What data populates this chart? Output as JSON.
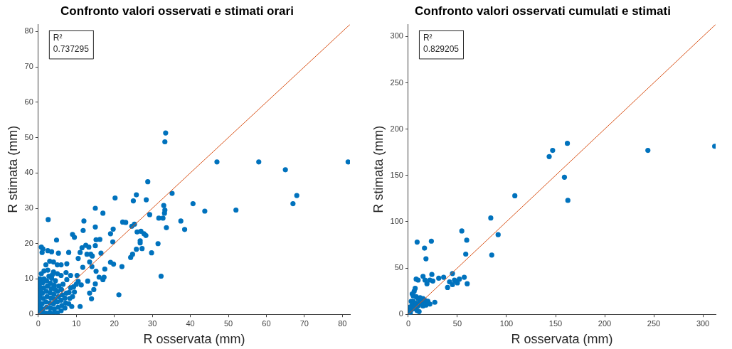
{
  "chart_data": [
    {
      "type": "scatter",
      "title": "Confronto valori osservati e stimati orari",
      "xlabel": "R osservata (mm)",
      "ylabel": "R stimata (mm)",
      "xlim": [
        0,
        82
      ],
      "ylim": [
        0,
        82
      ],
      "xticks": [
        0,
        10,
        20,
        30,
        40,
        50,
        60,
        70,
        80
      ],
      "yticks": [
        0,
        10,
        20,
        30,
        40,
        50,
        60,
        70,
        80
      ],
      "grid": false,
      "legend": false,
      "annotations": [
        "R²",
        "0.737295"
      ],
      "series": [
        {
          "marker": "circle",
          "color": "#0072bd",
          "x": [
            33.5,
            33.3,
            47,
            58,
            65,
            81.5,
            68,
            67,
            52,
            43.8,
            40.7,
            35.2,
            28.8,
            20.2,
            25.8,
            25,
            28.4,
            15,
            17,
            2.6,
            12,
            22.2,
            23,
            29.3,
            33,
            33.3,
            33.2,
            31.7,
            32.8,
            33.7,
            37.5,
            38.5,
            11.8,
            15,
            9,
            9.5,
            19,
            19.7,
            25.3,
            24.6,
            26,
            27,
            27.8,
            28.3,
            26.8,
            26.8,
            27.3,
            25.8,
            31.5,
            29.8,
            4.8,
            15.2,
            16.2,
            19.6,
            11.5,
            12.5,
            13.3,
            15,
            0.8,
            1.2,
            2.5,
            3.5,
            1,
            5.3,
            8,
            11,
            12.8,
            13.8,
            14.2,
            16.5,
            24.8,
            24.3,
            10.5,
            13.5,
            19,
            19.8,
            14.1,
            22,
            11.7,
            15.2,
            17.5,
            2,
            3,
            4,
            5,
            6,
            7.5,
            2.5,
            4,
            5,
            6,
            7.3,
            8.5,
            10.2,
            16,
            17.3,
            17,
            15,
            13,
            10.5,
            11.3,
            32.3,
            14.6,
            13.5,
            14,
            9.5,
            21.2,
            11,
            8.8,
            0,
            0.2,
            0.5,
            0.3,
            0.1,
            0.4,
            0.2,
            0.6,
            0.3,
            0.5,
            0.4,
            1,
            1.2,
            1,
            1.3,
            1.1,
            1.4,
            1.2,
            1.5,
            2,
            2.2,
            2,
            2.3,
            2.1,
            2.4,
            2.2,
            3,
            3.2,
            3,
            3.3,
            3.1,
            3.4,
            3.2,
            3.5,
            4,
            4.2,
            4,
            4.3,
            4.1,
            4.4,
            4.2,
            4.5,
            5,
            5.2,
            5,
            5.3,
            5.1,
            5.4,
            6,
            6.2,
            6,
            6.3,
            6.1,
            6.5,
            7,
            7.2,
            7,
            7.4,
            7.5,
            8,
            8.3,
            8.1,
            8.5,
            9,
            9.3,
            10,
            0.8,
            1.5,
            2.8,
            3.7
          ],
          "values": [
            51.3,
            48.8,
            43.1,
            43.1,
            40.9,
            43.1,
            33.6,
            31.3,
            29.5,
            29.2,
            31.3,
            34.2,
            37.5,
            32.9,
            33.8,
            32.1,
            32.4,
            30,
            28.6,
            26.8,
            26.4,
            26.1,
            26,
            28.2,
            30.8,
            29.5,
            28.6,
            27.2,
            27.2,
            24.5,
            26.4,
            24,
            23.7,
            24.7,
            22.6,
            21.8,
            22.8,
            24.1,
            25.5,
            24.9,
            23.3,
            23.5,
            22.8,
            22.3,
            20.8,
            20.2,
            18.6,
            18.4,
            20,
            17.4,
            21,
            21.1,
            21.2,
            20.5,
            18.8,
            19.5,
            19,
            19.4,
            19,
            18.5,
            18,
            17.7,
            17.5,
            17.3,
            17.5,
            17.5,
            17,
            17,
            16.5,
            17.3,
            17,
            16.1,
            15.8,
            14.8,
            14.7,
            14.2,
            13.5,
            13.5,
            13.3,
            12.2,
            12.8,
            14,
            15,
            14.8,
            14,
            14,
            14.3,
            12.5,
            12,
            11.5,
            11,
            11.8,
            11,
            11,
            10.5,
            10.5,
            9.8,
            8.6,
            9.4,
            9.3,
            8.3,
            10.8,
            7,
            6,
            4.4,
            6.3,
            5.5,
            2.2,
            2.2,
            0,
            1,
            2,
            3,
            4,
            5,
            6,
            7,
            8,
            9,
            10,
            0.5,
            1.5,
            3,
            4.5,
            6,
            7.5,
            9,
            10,
            0.3,
            2,
            3.5,
            5,
            6.5,
            8,
            9.5,
            0.5,
            1.8,
            3.2,
            4.6,
            6.1,
            7.3,
            8.8,
            10.2,
            0.2,
            1.5,
            3,
            4.2,
            5.6,
            7,
            8.2,
            9.5,
            0.4,
            2,
            3.5,
            5,
            6.5,
            8,
            1,
            2.5,
            4,
            5.5,
            7,
            8.5,
            1.8,
            3.2,
            4.6,
            6,
            9.8,
            3,
            4.5,
            6.2,
            7.5,
            5,
            7.8,
            8.5,
            11.5,
            12.3,
            10.8,
            11.2
          ]
        },
        {
          "type": "line",
          "marker": "none",
          "color": "#d95319",
          "x": [
            0,
            82
          ],
          "values": [
            0,
            82
          ]
        }
      ]
    },
    {
      "type": "scatter",
      "title": "Confronto valori osservati cumulati e stimati",
      "xlabel": "R osservata (mm)",
      "ylabel": "R stimata (mm)",
      "xlim": [
        0,
        313
      ],
      "ylim": [
        0,
        313
      ],
      "xticks": [
        0,
        50,
        100,
        150,
        200,
        250,
        300
      ],
      "yticks": [
        0,
        50,
        100,
        150,
        200,
        250,
        300
      ],
      "grid": false,
      "legend": false,
      "annotations": [
        "R²",
        "0.829205"
      ],
      "series": [
        {
          "marker": "circle",
          "color": "#0072bd",
          "x": [
            312,
            244,
            162,
            147,
            143.5,
            159,
            162.5,
            108.5,
            84,
            91.5,
            85,
            54.5,
            59.5,
            58.5,
            9,
            23.5,
            16.5,
            18,
            24,
            45,
            8,
            10,
            15,
            17,
            19,
            22,
            25,
            31,
            36,
            40,
            42,
            45,
            47,
            50,
            52,
            57,
            60,
            48,
            27,
            22,
            17,
            15,
            12,
            10,
            8,
            6,
            7,
            5,
            4,
            3,
            2,
            1,
            5,
            8,
            10,
            12,
            14,
            18,
            20,
            6,
            9,
            11,
            2,
            3,
            4,
            1,
            0.5,
            7,
            15,
            0,
            2
          ],
          "values": [
            181.5,
            177,
            184.6,
            177,
            170.3,
            148,
            123,
            128,
            104,
            86,
            64,
            90,
            80,
            65,
            78,
            79,
            71.5,
            60,
            43,
            44,
            38,
            37,
            41,
            37,
            33,
            37,
            36,
            39,
            40,
            29,
            35,
            32,
            37,
            34,
            38,
            40,
            33,
            36,
            13,
            11,
            15,
            17,
            18,
            17,
            19,
            25,
            28,
            20,
            10,
            5,
            2,
            1,
            14,
            12,
            9,
            14,
            12,
            10,
            14,
            6,
            4,
            3,
            8,
            14,
            22,
            4,
            0.5,
            8,
            9,
            2,
            0.5
          ]
        },
        {
          "type": "line",
          "marker": "none",
          "color": "#d95319",
          "x": [
            0,
            313
          ],
          "values": [
            0,
            313
          ]
        }
      ]
    }
  ]
}
